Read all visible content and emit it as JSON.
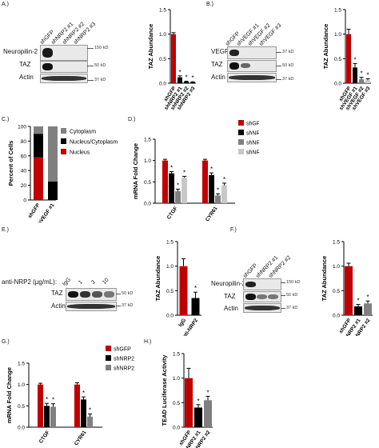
{
  "colors": {
    "red": "#c00000",
    "black": "#000000",
    "gray": "#808080",
    "lightgray": "#c8c8c8"
  },
  "panels": {
    "A": {
      "label": "A.)",
      "blot_rows": [
        "Neuropilin-2",
        "TAZ",
        "Actin"
      ],
      "lanes": [
        "shGFP",
        "shNRP2 #1",
        "shNRP2 #2",
        "shNRP2 #3"
      ],
      "markers": [
        "150 kD",
        "50 kD",
        "37 kD"
      ]
    },
    "B": {
      "label": "B.)",
      "blot_rows": [
        "VEGF",
        "TAZ",
        "Actin"
      ],
      "lanes": [
        "shGFP",
        "shVEGF #1",
        "shVEGF #2",
        "shVEGF #3"
      ],
      "markers": [
        "37 kD",
        "50 kD",
        "37 kD"
      ]
    },
    "C": {
      "label": "C.)"
    },
    "D": {
      "label": "D.)"
    },
    "E": {
      "label": "E.)",
      "treatment": "anti-NRP2 (µg/mL):",
      "lanes": [
        "IgG",
        "1",
        "3",
        "10"
      ],
      "blot_rows": [
        "TAZ",
        "Actin"
      ],
      "markers": [
        "50 kD",
        "37 kD"
      ]
    },
    "F": {
      "label": "F.)",
      "blot_rows": [
        "Neuropilin-2",
        "TAZ",
        "Actin"
      ],
      "lanes": [
        "shGFP",
        "shNRP2 #1",
        "shNRP2 #2"
      ],
      "markers": [
        "150 kD",
        "50 kD",
        "37 kD"
      ]
    },
    "G": {
      "label": "G.)"
    },
    "H": {
      "label": "H.)"
    }
  },
  "chart_data": [
    {
      "id": "A",
      "type": "bar",
      "ylabel": "TAZ Abundance",
      "ylim": [
        0,
        1.5
      ],
      "yticks": [
        "0.0",
        "0.5",
        "1.0",
        "1.5"
      ],
      "categories": [
        "shGFP",
        "shNRP2 #1",
        "shNRP2 #2",
        "shNRP2 #3"
      ],
      "values": [
        1.0,
        0.12,
        0.03,
        0.02
      ],
      "errors": [
        0.03,
        0.03,
        0.01,
        0.01
      ],
      "colors": [
        "red",
        "black",
        "black",
        "black"
      ],
      "stars": [
        false,
        true,
        true,
        true
      ]
    },
    {
      "id": "B",
      "type": "bar",
      "ylabel": "TAZ Abundance",
      "ylim": [
        0,
        1.5
      ],
      "yticks": [
        "0.0",
        "0.5",
        "1.0",
        "1.5"
      ],
      "categories": [
        "shGFP",
        "shVEGF #1",
        "shVEGF #2",
        "shVEGF #3"
      ],
      "values": [
        1.0,
        0.32,
        0.08,
        0.06
      ],
      "errors": [
        0.1,
        0.08,
        0.04,
        0.03
      ],
      "colors": [
        "red",
        "black",
        "gray",
        "lightgray"
      ],
      "stars": [
        false,
        true,
        true,
        true
      ]
    },
    {
      "id": "C",
      "type": "bar",
      "stacked": true,
      "ylabel": "Percent of Cells",
      "ylim": [
        0,
        100
      ],
      "yticks": [
        "0",
        "20",
        "40",
        "60",
        "80",
        "100"
      ],
      "categories": [
        "shGFP",
        "shVEGF #1"
      ],
      "series": [
        {
          "name": "Nucleus",
          "color": "red",
          "values": [
            58,
            0
          ]
        },
        {
          "name": "Nucleus/Cytoplasm",
          "color": "black",
          "values": [
            32,
            25
          ]
        },
        {
          "name": "Cytoplasm",
          "color": "gray",
          "values": [
            10,
            75
          ]
        }
      ],
      "legend": "right"
    },
    {
      "id": "D",
      "type": "bar",
      "ylabel": "mRNA Fold Change",
      "ylim": [
        0,
        1.5
      ],
      "yticks": [
        "0.0",
        "0.5",
        "1.0",
        "1.5"
      ],
      "categories": [
        "CTGF",
        "CYR61"
      ],
      "series": [
        {
          "name": "shGFP",
          "color": "red",
          "values": [
            1.0,
            1.0
          ],
          "errors": [
            0.03,
            0.03
          ],
          "stars": [
            false,
            false
          ]
        },
        {
          "name": "shNRP2 #1",
          "color": "black",
          "values": [
            0.7,
            0.66
          ],
          "errors": [
            0.04,
            0.05
          ],
          "stars": [
            true,
            true
          ]
        },
        {
          "name": "shNRP2 #2",
          "color": "gray",
          "values": [
            0.28,
            0.18
          ],
          "errors": [
            0.05,
            0.04
          ],
          "stars": [
            true,
            true
          ]
        },
        {
          "name": "shNRP2 #3",
          "color": "lightgray",
          "values": [
            0.6,
            0.42
          ],
          "errors": [
            0.03,
            0.05
          ],
          "stars": [
            true,
            true
          ]
        }
      ],
      "legend": "top"
    },
    {
      "id": "E",
      "type": "bar",
      "ylabel": "TAZ Abundance",
      "ylim": [
        0,
        1.5
      ],
      "yticks": [
        "0.0",
        "0.5",
        "1.0",
        "1.5"
      ],
      "categories": [
        "IgG",
        "anti-NRP2"
      ],
      "values": [
        1.0,
        0.35
      ],
      "errors": [
        0.15,
        0.12
      ],
      "colors": [
        "red",
        "black"
      ],
      "stars": [
        false,
        true
      ]
    },
    {
      "id": "F",
      "type": "bar",
      "ylabel": "TAZ Abundance",
      "ylim": [
        0,
        1.5
      ],
      "yticks": [
        "0.0",
        "0.5",
        "1.0",
        "1.5"
      ],
      "categories": [
        "shGFP",
        "shNRP2 #1",
        "shNRP2 #2"
      ],
      "values": [
        1.0,
        0.18,
        0.24
      ],
      "errors": [
        0.06,
        0.04,
        0.05
      ],
      "colors": [
        "red",
        "black",
        "gray"
      ],
      "stars": [
        false,
        true,
        true
      ]
    },
    {
      "id": "G",
      "type": "bar",
      "ylabel": "mRNA Fold Change",
      "ylim": [
        0,
        1.5
      ],
      "yticks": [
        "0.0",
        "0.5",
        "1.0",
        "1.5"
      ],
      "categories": [
        "CTGF",
        "CYR61"
      ],
      "series": [
        {
          "name": "shGFP",
          "color": "red",
          "values": [
            1.0,
            1.0
          ],
          "errors": [
            0.03,
            0.04
          ],
          "stars": [
            false,
            false
          ]
        },
        {
          "name": "shNRP2 #1",
          "color": "black",
          "values": [
            0.5,
            0.65
          ],
          "errors": [
            0.06,
            0.06
          ],
          "stars": [
            true,
            true
          ]
        },
        {
          "name": "shNRP2 #2",
          "color": "gray",
          "values": [
            0.48,
            0.25
          ],
          "errors": [
            0.07,
            0.06
          ],
          "stars": [
            true,
            true
          ]
        }
      ],
      "legend": "top"
    },
    {
      "id": "H",
      "type": "bar",
      "ylabel": "TEAD Luciferase Activity",
      "ylim": [
        0,
        1.5
      ],
      "yticks": [
        "0.0",
        "0.5",
        "1.0",
        "1.5"
      ],
      "categories": [
        "shGFP",
        "shNRP2 #1",
        "shNRP2 #2"
      ],
      "values": [
        1.0,
        0.4,
        0.55
      ],
      "errors": [
        0.2,
        0.06,
        0.08
      ],
      "colors": [
        "red",
        "black",
        "gray"
      ],
      "stars": [
        false,
        true,
        true
      ]
    }
  ]
}
